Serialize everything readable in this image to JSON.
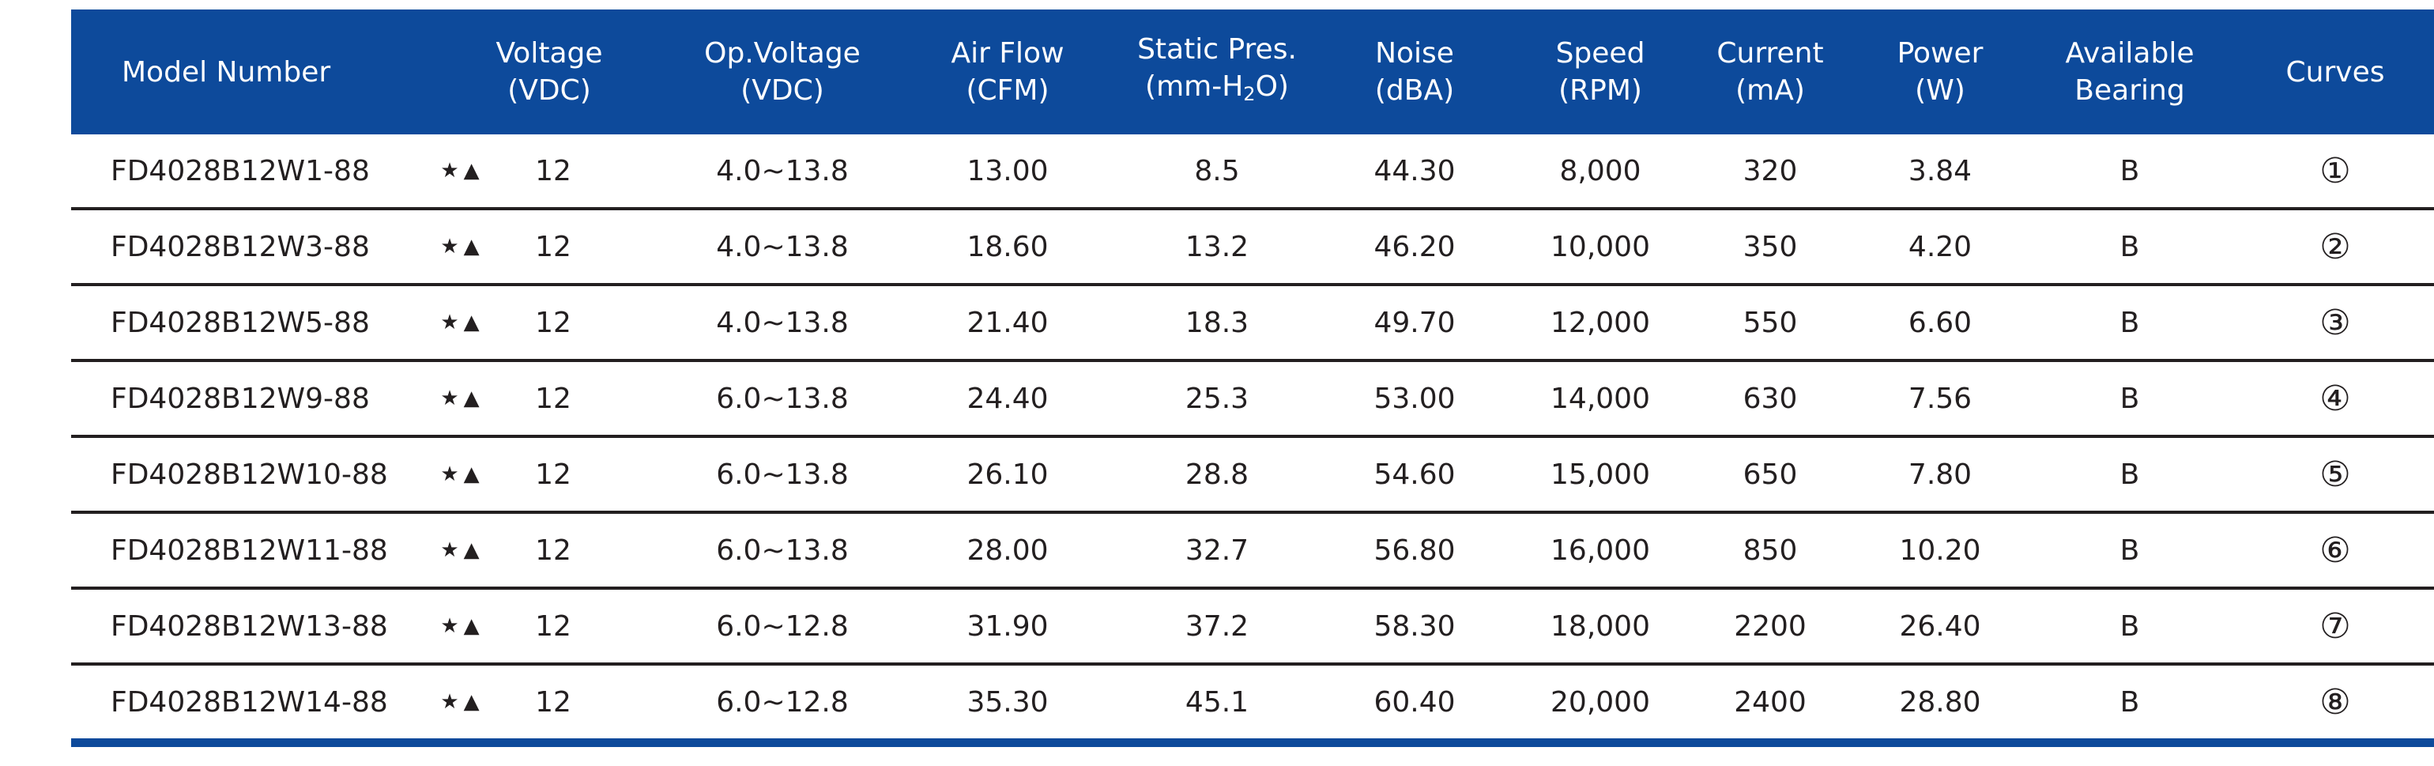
{
  "header": {
    "model": "Model Number",
    "voltage": [
      "Voltage",
      "(VDC)"
    ],
    "op_voltage": [
      "Op.Voltage",
      "(VDC)"
    ],
    "air_flow": [
      "Air Flow",
      "(CFM)"
    ],
    "static_pres": [
      "Static Pres.",
      "(mm-H",
      "2",
      "O)"
    ],
    "noise": [
      "Noise",
      "(dBA)"
    ],
    "speed": [
      "Speed",
      "(RPM)"
    ],
    "current": [
      "Current",
      "(mA)"
    ],
    "power": [
      "Power",
      "(W)"
    ],
    "bearing": [
      "Available",
      "Bearing"
    ],
    "curves": "Curves"
  },
  "rows": [
    {
      "model": "FD4028B12W1-88",
      "marks": "★▲",
      "voltage": "12",
      "op_voltage": "4.0~13.8",
      "air_flow": "13.00",
      "static_pres": "8.5",
      "noise": "44.30",
      "speed": "8,000",
      "current": "320",
      "power": "3.84",
      "bearing": "B",
      "curve": "①"
    },
    {
      "model": "FD4028B12W3-88",
      "marks": "★▲",
      "voltage": "12",
      "op_voltage": "4.0~13.8",
      "air_flow": "18.60",
      "static_pres": "13.2",
      "noise": "46.20",
      "speed": "10,000",
      "current": "350",
      "power": "4.20",
      "bearing": "B",
      "curve": "②"
    },
    {
      "model": "FD4028B12W5-88",
      "marks": "★▲",
      "voltage": "12",
      "op_voltage": "4.0~13.8",
      "air_flow": "21.40",
      "static_pres": "18.3",
      "noise": "49.70",
      "speed": "12,000",
      "current": "550",
      "power": "6.60",
      "bearing": "B",
      "curve": "③"
    },
    {
      "model": "FD4028B12W9-88",
      "marks": "★▲",
      "voltage": "12",
      "op_voltage": "6.0~13.8",
      "air_flow": "24.40",
      "static_pres": "25.3",
      "noise": "53.00",
      "speed": "14,000",
      "current": "630",
      "power": "7.56",
      "bearing": "B",
      "curve": "④"
    },
    {
      "model": "FD4028B12W10-88",
      "marks": "★▲",
      "voltage": "12",
      "op_voltage": "6.0~13.8",
      "air_flow": "26.10",
      "static_pres": "28.8",
      "noise": "54.60",
      "speed": "15,000",
      "current": "650",
      "power": "7.80",
      "bearing": "B",
      "curve": "⑤"
    },
    {
      "model": "FD4028B12W11-88",
      "marks": "★▲",
      "voltage": "12",
      "op_voltage": "6.0~13.8",
      "air_flow": "28.00",
      "static_pres": "32.7",
      "noise": "56.80",
      "speed": "16,000",
      "current": "850",
      "power": "10.20",
      "bearing": "B",
      "curve": "⑥"
    },
    {
      "model": "FD4028B12W13-88",
      "marks": "★▲",
      "voltage": "12",
      "op_voltage": "6.0~12.8",
      "air_flow": "31.90",
      "static_pres": "37.2",
      "noise": "58.30",
      "speed": "18,000",
      "current": "2200",
      "power": "26.40",
      "bearing": "B",
      "curve": "⑦"
    },
    {
      "model": "FD4028B12W14-88",
      "marks": "★▲",
      "voltage": "12",
      "op_voltage": "6.0~12.8",
      "air_flow": "35.30",
      "static_pres": "45.1",
      "noise": "60.40",
      "speed": "20,000",
      "current": "2400",
      "power": "28.80",
      "bearing": "B",
      "curve": "⑧"
    }
  ]
}
